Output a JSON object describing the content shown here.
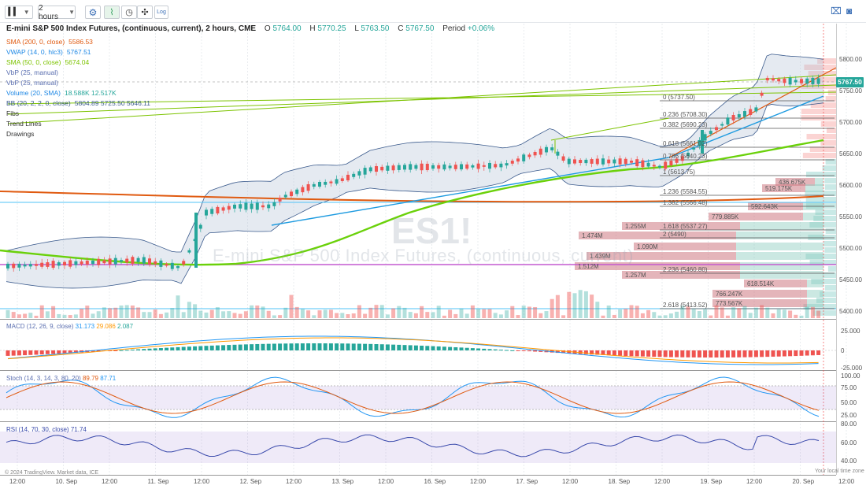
{
  "toolbar": {
    "interval": "2 hours",
    "log_label": "Log"
  },
  "header": {
    "title": "E-mini S&P 500 Index Futures, (continuous, current), 2 hours, CME",
    "open_label": "O",
    "open": "5764.00",
    "high_label": "H",
    "high": "5770.25",
    "low_label": "L",
    "low": "5763.50",
    "close_label": "C",
    "close": "5767.50",
    "period_label": "Period",
    "period_change": "+0.06%"
  },
  "indicators": [
    {
      "name": "SMA (200, 0, close)",
      "value": "5586.53",
      "color": "#e05a10"
    },
    {
      "name": "VWAP (14, 0, hlc3)",
      "value": "5767.51",
      "color": "#1e88e5"
    },
    {
      "name": "SMA (50, 0, close)",
      "value": "5674.04",
      "color": "#7cc300"
    },
    {
      "name": "VbP (25, manual)",
      "value": "",
      "color": "#5b6fb0"
    },
    {
      "name": "VbP (25, manual)",
      "value": "",
      "color": "#5b6fb0"
    },
    {
      "name": "Volume (20, SMA)",
      "value": "18.588K 12.517K",
      "color": "#1e88e5"
    },
    {
      "name": "BB (20, 2, 2, 0, close)",
      "value": "5804.89 5725.50 5646.11",
      "color": "#3a5a8c"
    },
    {
      "name": "Fibs",
      "value": "",
      "color": "#333333"
    },
    {
      "name": "Trend Lines",
      "value": "",
      "color": "#333333"
    },
    {
      "name": "Drawings",
      "value": "",
      "color": "#333333"
    }
  ],
  "price_tag": "5767.50",
  "price_axis": [
    "5800.00",
    "5750.00",
    "5700.00",
    "5650.00",
    "5600.00",
    "5550.00",
    "5500.00",
    "5450.00",
    "5400.00"
  ],
  "fib_levels": [
    {
      "label": "0 (5737.50)"
    },
    {
      "label": "0.236 (5708.30)"
    },
    {
      "label": "0.382 (5690.23)"
    },
    {
      "label": "0.618 (5661.02)"
    },
    {
      "label": "0.786 (5640.23)"
    },
    {
      "label": "1 (5613.75)"
    },
    {
      "label": "1.236 (5584.55)"
    },
    {
      "label": "1.382 (5566.48)"
    },
    {
      "label": "1.618 (5537.27)"
    },
    {
      "label": "2 (5490)"
    },
    {
      "label": "2.236 (5460.80)"
    },
    {
      "label": "2.618 (5413.52)"
    }
  ],
  "vbp_labels": [
    "436.675K",
    "519.175K",
    "592.643K",
    "779.885K",
    "1.255M",
    "1.474M",
    "1.090M",
    "1.439M",
    "1.512M",
    "1.257M",
    "618.514K",
    "766.247K",
    "773.567K"
  ],
  "macd": {
    "label": "MACD (12, 26, 9, close)",
    "v1": "31.173",
    "v2": "29.086",
    "v3": "2.087",
    "axis": [
      "25.000",
      "0",
      "-25.000"
    ]
  },
  "stoch": {
    "label": "Stoch (14, 3, 14, 3, 80, 20)",
    "v1": "89.79",
    "v2": "87.71",
    "axis": [
      "100.00",
      "75.00",
      "50.00",
      "25.00"
    ]
  },
  "rsi": {
    "label": "RSI (14, 70, 30, close)",
    "v1": "71.74",
    "axis": [
      "80.00",
      "60.00",
      "40.00"
    ]
  },
  "time_axis": [
    "12:00",
    "10. Sep",
    "12:00",
    "11. Sep",
    "12:00",
    "12. Sep",
    "12:00",
    "13. Sep",
    "12:00",
    "16. Sep",
    "12:00",
    "17. Sep",
    "12:00",
    "18. Sep",
    "12:00",
    "19. Sep",
    "12:00",
    "20. Sep",
    "12:00"
  ],
  "watermark_symbol": "ES1!",
  "watermark_text": "E-mini S&P 500 Index Futures, (continuous, current)",
  "footer_left": "© 2024 TradingView. Market data, ICE",
  "footer_right": "Your local time zone"
}
